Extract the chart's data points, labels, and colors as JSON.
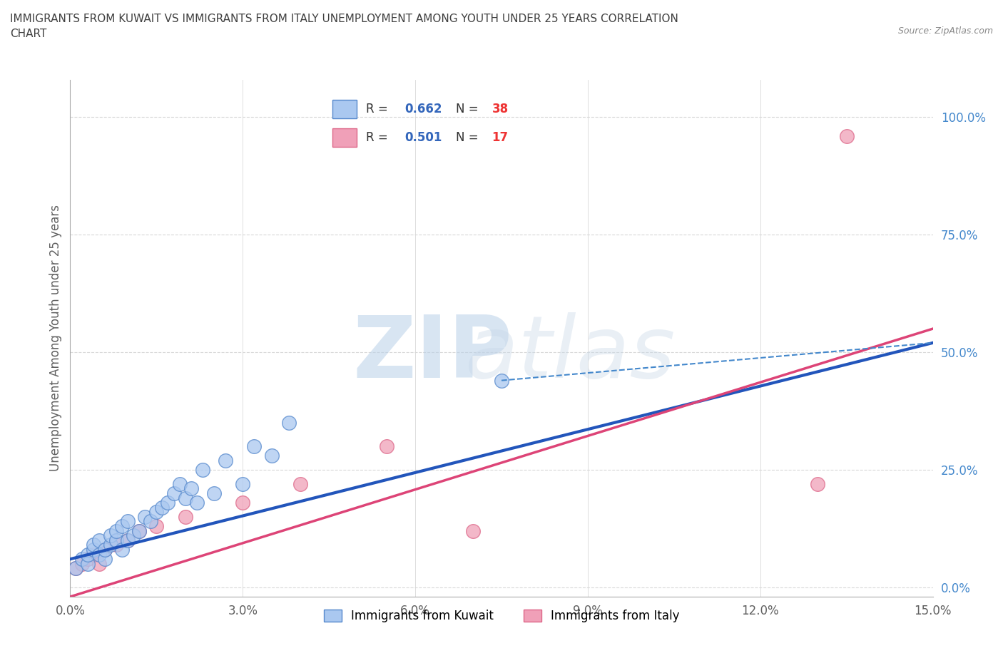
{
  "title": "IMMIGRANTS FROM KUWAIT VS IMMIGRANTS FROM ITALY UNEMPLOYMENT AMONG YOUTH UNDER 25 YEARS CORRELATION\nCHART",
  "source": "Source: ZipAtlas.com",
  "ylabel": "Unemployment Among Youth under 25 years",
  "xlabel": "",
  "xlim": [
    0.0,
    0.15
  ],
  "ylim": [
    -0.02,
    1.08
  ],
  "yticks": [
    0.0,
    0.25,
    0.5,
    0.75,
    1.0
  ],
  "ytick_labels": [
    "0.0%",
    "25.0%",
    "50.0%",
    "75.0%",
    "100.0%"
  ],
  "xticks": [
    0.0,
    0.03,
    0.06,
    0.09,
    0.12,
    0.15
  ],
  "xtick_labels": [
    "0.0%",
    "3.0%",
    "6.0%",
    "9.0%",
    "12.0%",
    "15.0%"
  ],
  "kuwait_color": "#aac8f0",
  "kuwait_edge": "#5588cc",
  "italy_color": "#f0a0b8",
  "italy_edge": "#dd6688",
  "kuwait_R": 0.662,
  "kuwait_N": 38,
  "italy_R": 0.501,
  "italy_N": 17,
  "kuwait_scatter_x": [
    0.001,
    0.002,
    0.003,
    0.003,
    0.004,
    0.004,
    0.005,
    0.005,
    0.006,
    0.006,
    0.007,
    0.007,
    0.008,
    0.008,
    0.009,
    0.009,
    0.01,
    0.01,
    0.011,
    0.012,
    0.013,
    0.014,
    0.015,
    0.016,
    0.017,
    0.018,
    0.019,
    0.02,
    0.021,
    0.022,
    0.023,
    0.025,
    0.027,
    0.03,
    0.032,
    0.035,
    0.038,
    0.075
  ],
  "kuwait_scatter_y": [
    0.04,
    0.06,
    0.05,
    0.07,
    0.08,
    0.09,
    0.07,
    0.1,
    0.06,
    0.08,
    0.09,
    0.11,
    0.1,
    0.12,
    0.08,
    0.13,
    0.1,
    0.14,
    0.11,
    0.12,
    0.15,
    0.14,
    0.16,
    0.17,
    0.18,
    0.2,
    0.22,
    0.19,
    0.21,
    0.18,
    0.25,
    0.2,
    0.27,
    0.22,
    0.3,
    0.28,
    0.35,
    0.44
  ],
  "italy_scatter_x": [
    0.001,
    0.002,
    0.003,
    0.004,
    0.005,
    0.006,
    0.008,
    0.01,
    0.012,
    0.015,
    0.02,
    0.03,
    0.04,
    0.055,
    0.07,
    0.13,
    0.135
  ],
  "italy_scatter_y": [
    0.04,
    0.05,
    0.06,
    0.07,
    0.05,
    0.08,
    0.09,
    0.1,
    0.12,
    0.13,
    0.15,
    0.18,
    0.22,
    0.3,
    0.12,
    0.22,
    0.96
  ],
  "kuwait_trend_x": [
    0.0,
    0.15
  ],
  "kuwait_trend_y": [
    0.06,
    0.52
  ],
  "italy_trend_x": [
    0.0,
    0.15
  ],
  "italy_trend_y": [
    -0.02,
    0.55
  ],
  "dashed_trend_x": [
    0.075,
    0.15
  ],
  "dashed_trend_y": [
    0.44,
    0.52
  ],
  "watermark_zip": "ZIP",
  "watermark_atlas": "atlas",
  "watermark_color_zip": "#b8d0e8",
  "watermark_color_atlas": "#c8d8e8",
  "bg_color": "#ffffff",
  "grid_color": "#d8d8d8",
  "title_color": "#404040",
  "axis_label_color": "#606060",
  "legend_R_color": "#3366bb",
  "legend_N_color": "#ee3333",
  "tick_color_y": "#4488cc",
  "tick_color_x": "#606060"
}
